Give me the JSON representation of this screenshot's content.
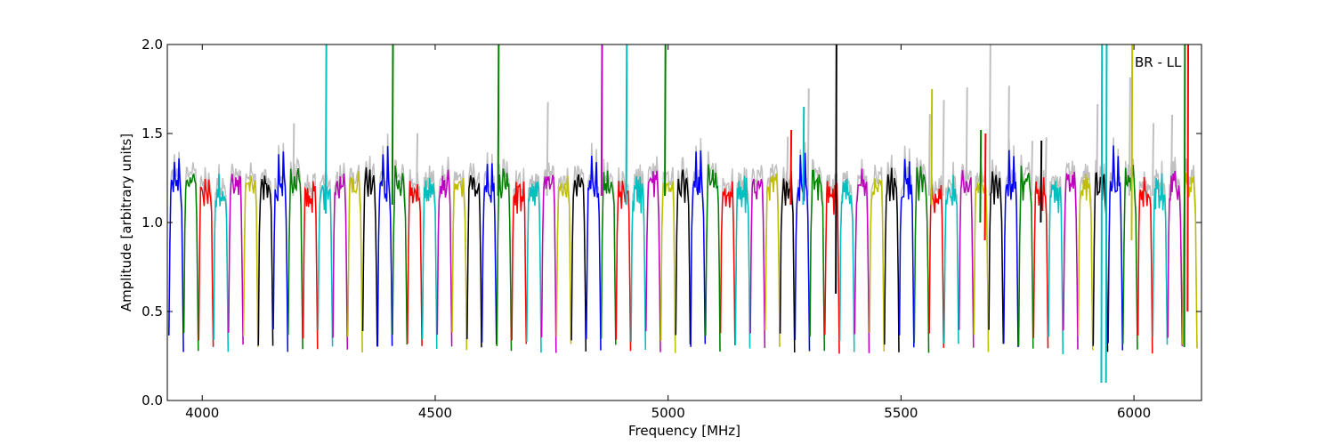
{
  "chart_data": {
    "type": "line",
    "title": "",
    "annotation": "BR - LL",
    "xlabel": "Frequency [MHz]",
    "ylabel": "Amplitude [arbitrary units]",
    "xlim": [
      3925,
      6145
    ],
    "ylim": [
      0.0,
      2.0
    ],
    "xticks": [
      4000,
      4500,
      5000,
      5500,
      6000
    ],
    "yticks": [
      0.0,
      0.5,
      1.0,
      1.5,
      2.0
    ],
    "xtick_labels": [
      "4000",
      "4500",
      "5000",
      "5500",
      "6000"
    ],
    "ytick_labels": [
      "0.0",
      "0.5",
      "1.0",
      "1.5",
      "2.0"
    ],
    "grid": false,
    "raw_color": "#c0c0c0",
    "series_colors": [
      "#0000ff",
      "#008000",
      "#ff0000",
      "#00bfbf",
      "#bf00bf",
      "#bfbf00",
      "#000000"
    ],
    "band_start": 3928,
    "band_step": 32,
    "band_count": 69,
    "series": [
      {
        "color": "#0000ff",
        "values": [
          1.18,
          1.2,
          1.15,
          1.38,
          1.2,
          0.28
        ]
      },
      {
        "color": "#008000",
        "values": [
          1.28,
          1.24,
          1.18,
          1.22,
          0.3
        ]
      },
      {
        "color": "#ff0000",
        "values": [
          1.2,
          1.15,
          1.18,
          1.1,
          0.35
        ]
      },
      {
        "color": "#00bfbf",
        "values": [
          1.1,
          1.2,
          1.15,
          1.22,
          0.3
        ]
      },
      {
        "color": "#bf00bf",
        "values": [
          1.18,
          1.26,
          1.2,
          1.22,
          0.28
        ]
      },
      {
        "color": "#bfbf00",
        "values": [
          1.2,
          1.23,
          1.18,
          1.2,
          0.3
        ]
      },
      {
        "color": "#000000",
        "values": [
          1.22,
          1.25,
          1.18,
          1.15,
          0.28
        ]
      }
    ]
  }
}
